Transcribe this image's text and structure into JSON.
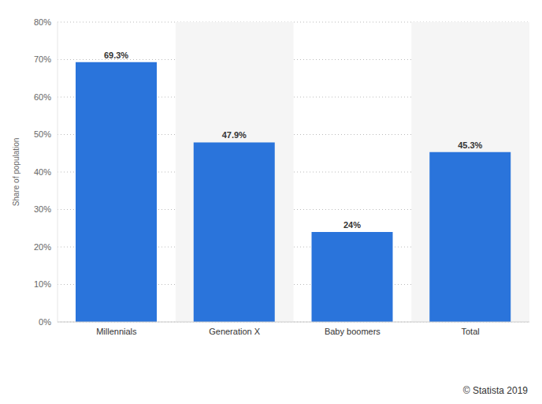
{
  "chart_data": {
    "type": "bar",
    "y_label": "Share of population",
    "categories": [
      "Millennials",
      "Generation X",
      "Baby boomers",
      "Total"
    ],
    "values": [
      69.3,
      47.9,
      24,
      45.3
    ],
    "value_labels": [
      "69.3%",
      "47.9%",
      "24%",
      "45.3%"
    ],
    "data_labels": true,
    "color": "#2a74db",
    "ylim": [
      0,
      80
    ],
    "yticks": [
      {
        "value": 0,
        "label": "0%"
      },
      {
        "value": 10,
        "label": "10%"
      },
      {
        "value": 20,
        "label": "20%"
      },
      {
        "value": 30,
        "label": "30%"
      },
      {
        "value": 40,
        "label": "40%"
      },
      {
        "value": 50,
        "label": "50%"
      },
      {
        "value": 60,
        "label": "60%"
      },
      {
        "value": 70,
        "label": "70%"
      },
      {
        "value": 80,
        "label": "80%"
      }
    ],
    "grid": true,
    "source": "© Statista 2019"
  }
}
